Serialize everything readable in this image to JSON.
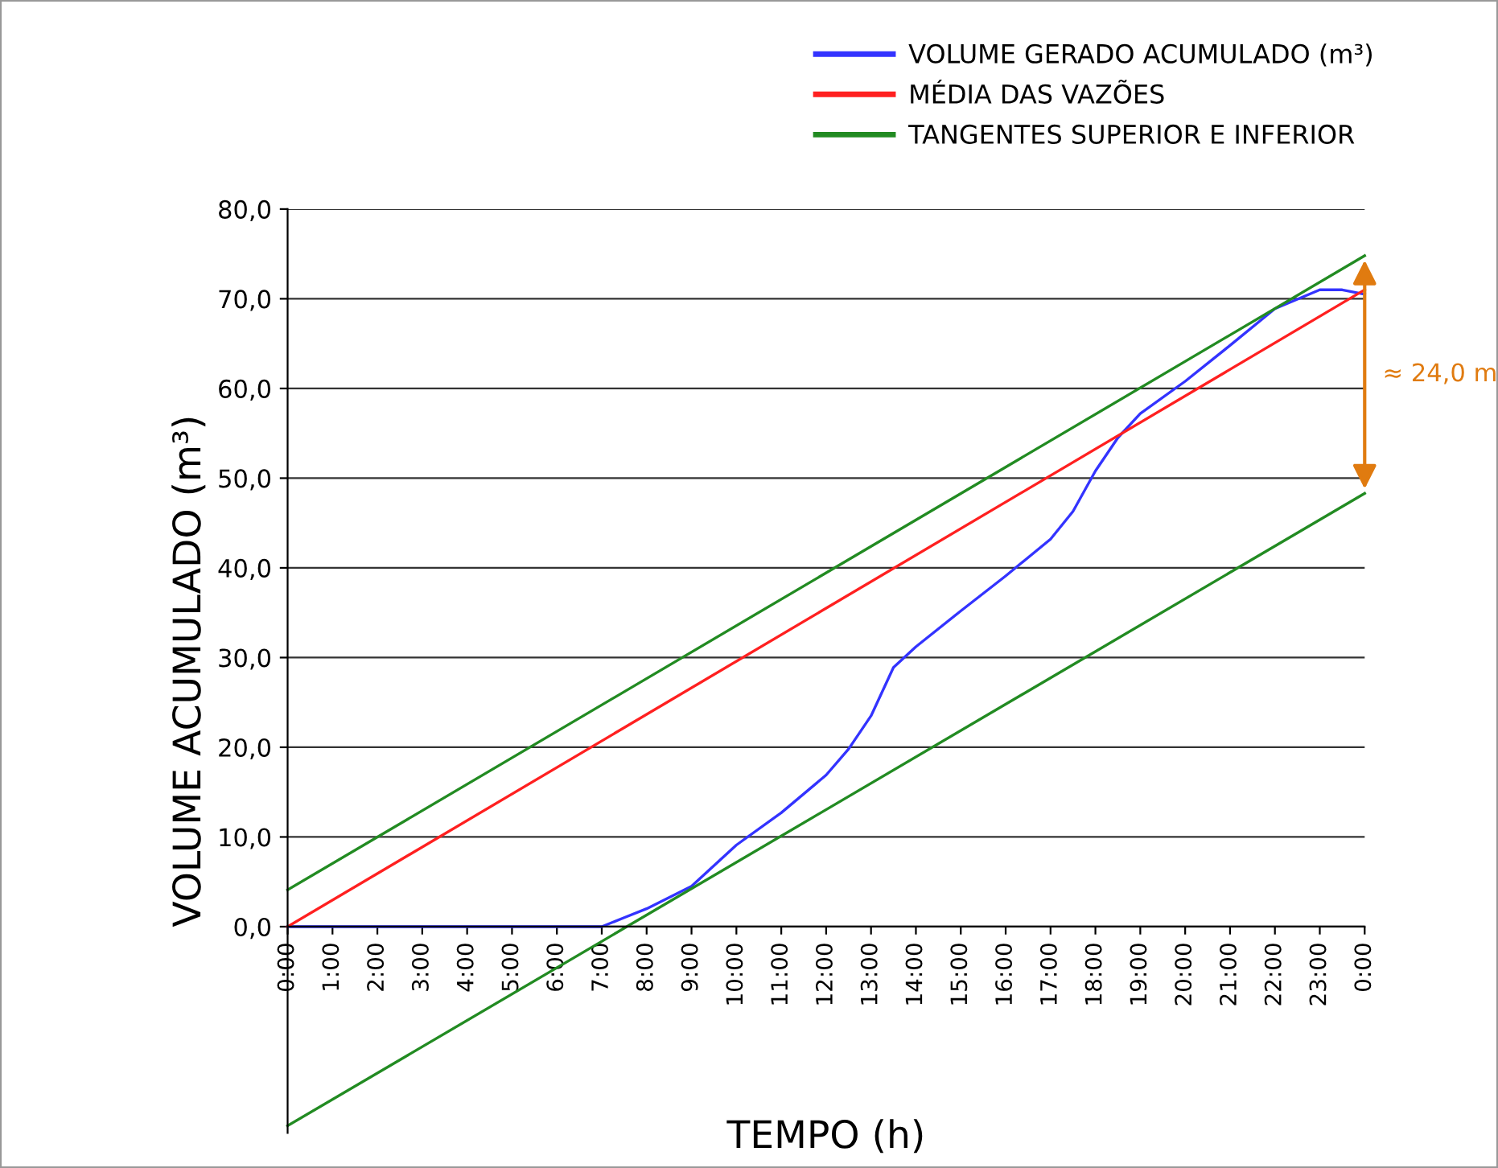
{
  "chart_data": {
    "type": "line",
    "xlabel": "TEMPO (h)",
    "ylabel": "VOLUME ACUMULADO (m³)",
    "xlim": [
      0,
      24
    ],
    "ylim": [
      -23,
      80
    ],
    "xticks": [
      {
        "value": 0,
        "label": "0:00"
      },
      {
        "value": 1,
        "label": "1:00"
      },
      {
        "value": 2,
        "label": "2:00"
      },
      {
        "value": 3,
        "label": "3:00"
      },
      {
        "value": 4,
        "label": "4:00"
      },
      {
        "value": 5,
        "label": "5:00"
      },
      {
        "value": 6,
        "label": "6:00"
      },
      {
        "value": 7,
        "label": "7:00"
      },
      {
        "value": 8,
        "label": "8:00"
      },
      {
        "value": 9,
        "label": "9:00"
      },
      {
        "value": 10,
        "label": "10:00"
      },
      {
        "value": 11,
        "label": "11:00"
      },
      {
        "value": 12,
        "label": "12:00"
      },
      {
        "value": 13,
        "label": "13:00"
      },
      {
        "value": 14,
        "label": "14:00"
      },
      {
        "value": 15,
        "label": "15:00"
      },
      {
        "value": 16,
        "label": "16:00"
      },
      {
        "value": 17,
        "label": "17:00"
      },
      {
        "value": 18,
        "label": "18:00"
      },
      {
        "value": 19,
        "label": "19:00"
      },
      {
        "value": 20,
        "label": "20:00"
      },
      {
        "value": 21,
        "label": "21:00"
      },
      {
        "value": 22,
        "label": "22:00"
      },
      {
        "value": 23,
        "label": "23:00"
      },
      {
        "value": 24,
        "label": "0:00"
      }
    ],
    "yticks": [
      {
        "value": 0,
        "label": "0,0"
      },
      {
        "value": 10,
        "label": "10,0"
      },
      {
        "value": 20,
        "label": "20,0"
      },
      {
        "value": 30,
        "label": "30,0"
      },
      {
        "value": 40,
        "label": "40,0"
      },
      {
        "value": 50,
        "label": "50,0"
      },
      {
        "value": 60,
        "label": "60,0"
      },
      {
        "value": 70,
        "label": "70,0"
      },
      {
        "value": 80,
        "label": "80,0"
      }
    ],
    "grid": "y",
    "legend": "top",
    "marker": "none",
    "line_style": "solid",
    "series": [
      {
        "name": "VOLUME GERADO ACUMULADO (m³)",
        "color": "#3333ff",
        "x": [
          0,
          7,
          7.5,
          8,
          9,
          10,
          11,
          12,
          12.5,
          13,
          13.5,
          14,
          15,
          16,
          17,
          17.5,
          18,
          18.5,
          19,
          20,
          21,
          22,
          23,
          23.5,
          24
        ],
        "values": [
          0,
          0,
          1,
          2,
          4.5,
          9.1,
          12.7,
          16.9,
          19.8,
          23.5,
          28.9,
          31.2,
          35.2,
          39.1,
          43.2,
          46.3,
          50.8,
          54.5,
          57.2,
          60.8,
          64.8,
          68.9,
          71,
          71,
          70.5
        ]
      },
      {
        "name": "MÉDIA DAS VAZÕES",
        "color": "#ff2020",
        "x": [
          0,
          24
        ],
        "values": [
          0,
          71
        ]
      },
      {
        "name": "TANGENTES SUPERIOR E INFERIOR",
        "color": "#228b22",
        "x": [
          0,
          24
        ],
        "values": [
          4.1,
          74.8
        ]
      },
      {
        "color": "#228b22",
        "x": [
          0,
          24
        ],
        "values": [
          -22.2,
          48.3
        ]
      }
    ],
    "annotations": [
      "≈ 24,0 m"
    ]
  }
}
